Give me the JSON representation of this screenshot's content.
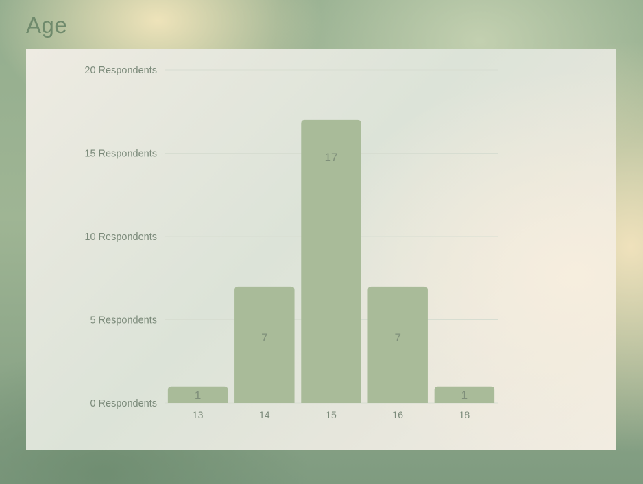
{
  "slide": {
    "title": "Age"
  },
  "colors": {
    "bar": "#a9bb99",
    "grid": "#d7ddd1",
    "axis_text": "#7b8a7a",
    "title": "#6f8a6c"
  },
  "chart_data": {
    "type": "bar",
    "title": "Age",
    "categories": [
      "13",
      "14",
      "15",
      "16",
      "18"
    ],
    "values": [
      1,
      7,
      17,
      7,
      1
    ],
    "data_labels": [
      "1",
      "7",
      "17",
      "7",
      "1"
    ],
    "ylim": [
      0,
      20
    ],
    "y_ticks": [
      0,
      5,
      10,
      15,
      20
    ],
    "y_tick_labels": [
      "0 Respondents",
      "5 Respondents",
      "10 Respondents",
      "15 Respondents",
      "20 Respondents"
    ],
    "grid": true,
    "legend": "none"
  }
}
